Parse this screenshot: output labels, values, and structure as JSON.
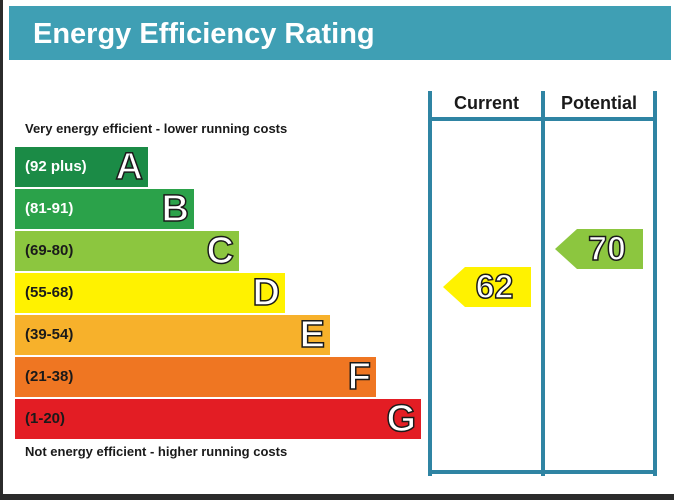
{
  "title": "Energy Efficiency Rating",
  "columns": {
    "current": "Current",
    "potential": "Potential"
  },
  "captions": {
    "top": "Very energy efficient - lower running costs",
    "bottom": "Not energy efficient - higher running costs"
  },
  "chart_data": {
    "type": "bar",
    "bands": [
      {
        "letter": "A",
        "range": "(92 plus)",
        "min": 92,
        "max": 100,
        "color": "#1b8b46"
      },
      {
        "letter": "B",
        "range": "(81-91)",
        "min": 81,
        "max": 91,
        "color": "#2ba24a"
      },
      {
        "letter": "C",
        "range": "(69-80)",
        "min": 69,
        "max": 80,
        "color": "#8cc63f"
      },
      {
        "letter": "D",
        "range": "(55-68)",
        "min": 55,
        "max": 68,
        "color": "#fff200"
      },
      {
        "letter": "E",
        "range": "(39-54)",
        "min": 39,
        "max": 54,
        "color": "#f7b12b"
      },
      {
        "letter": "F",
        "range": "(21-38)",
        "min": 21,
        "max": 38,
        "color": "#ef7622"
      },
      {
        "letter": "G",
        "range": "(1-20)",
        "min": 1,
        "max": 20,
        "color": "#e31d24"
      }
    ],
    "current": {
      "value": 62,
      "band": "D",
      "color": "#fff200"
    },
    "potential": {
      "value": 70,
      "band": "C",
      "color": "#8cc63f"
    }
  }
}
